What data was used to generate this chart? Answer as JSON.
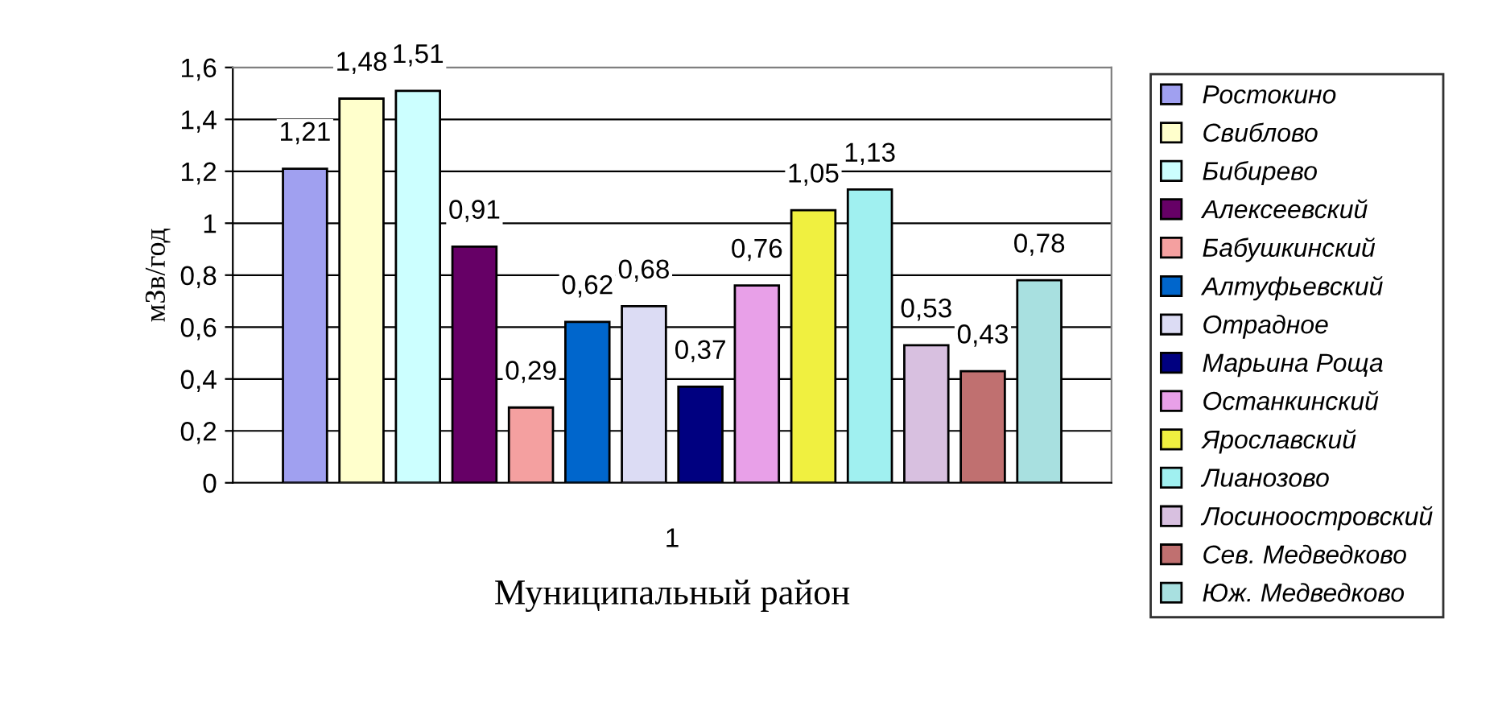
{
  "chart_data": {
    "type": "bar",
    "xlabel": "Муниципальный район",
    "ylabel": "мЗв/год",
    "categories": [
      "1"
    ],
    "series": [
      {
        "name": "Ростокино",
        "color": "#a0a0f0",
        "values": [
          1.21
        ],
        "value_labels": [
          "1,21"
        ]
      },
      {
        "name": "Свиблово",
        "color": "#ffffcc",
        "values": [
          1.48
        ],
        "value_labels": [
          "1,48"
        ]
      },
      {
        "name": "Бибирево",
        "color": "#ccffff",
        "values": [
          1.51
        ],
        "value_labels": [
          "1,51"
        ]
      },
      {
        "name": "Алексеевский",
        "color": "#660066",
        "values": [
          0.91
        ],
        "value_labels": [
          "0,91"
        ]
      },
      {
        "name": "Бабушкинский",
        "color": "#f4a0a0",
        "values": [
          0.29
        ],
        "value_labels": [
          "0,29"
        ]
      },
      {
        "name": "Алтуфьевский",
        "color": "#0066cc",
        "values": [
          0.62
        ],
        "value_labels": [
          "0,62"
        ]
      },
      {
        "name": "Отрадное",
        "color": "#dcdcf4",
        "values": [
          0.68
        ],
        "value_labels": [
          "0,68"
        ]
      },
      {
        "name": "Марьина Роща",
        "color": "#000080",
        "values": [
          0.37
        ],
        "value_labels": [
          "0,37"
        ]
      },
      {
        "name": "Останкинский",
        "color": "#e8a0e8",
        "values": [
          0.76
        ],
        "value_labels": [
          "0,76"
        ]
      },
      {
        "name": "Ярославский",
        "color": "#f0f040",
        "values": [
          1.05
        ],
        "value_labels": [
          "1,05"
        ]
      },
      {
        "name": "Лианозово",
        "color": "#a0f0f0",
        "values": [
          1.13
        ],
        "value_labels": [
          "1,13"
        ]
      },
      {
        "name": "Лосиноостровский",
        "color": "#d8c0e0",
        "values": [
          0.53
        ],
        "value_labels": [
          "0,53"
        ]
      },
      {
        "name": "Сев. Медведково",
        "color": "#c07070",
        "values": [
          0.43
        ],
        "value_labels": [
          "0,43"
        ]
      },
      {
        "name": "Юж. Медведково",
        "color": "#a8e0e0",
        "values": [
          0.78
        ],
        "value_labels": [
          "0,78"
        ]
      }
    ],
    "ylim": [
      0,
      1.6
    ],
    "yticks": [
      0,
      {
        "value": 0.2,
        "label": "0,2"
      },
      {
        "value": 0.4,
        "label": "0,4"
      },
      {
        "value": 0.6,
        "label": "0,6"
      },
      {
        "value": 0.8,
        "label": "0,8"
      },
      1,
      {
        "value": 1.2,
        "label": "1,2"
      },
      {
        "value": 1.4,
        "label": "1,4"
      },
      {
        "value": 1.6,
        "label": "1,6"
      }
    ],
    "grid": "y",
    "legend": "right"
  }
}
